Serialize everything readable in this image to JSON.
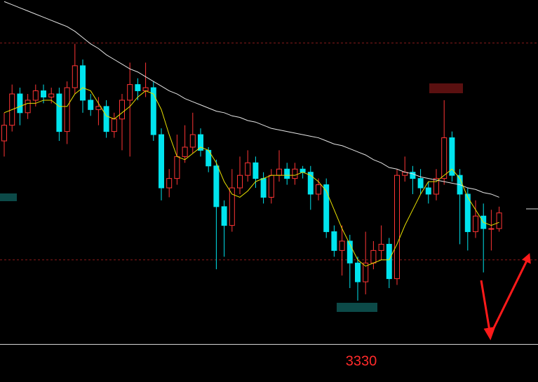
{
  "chart_data": {
    "type": "candlestick",
    "open": [
      3395,
      3400,
      3410,
      3404,
      3408,
      3411,
      3409,
      3410,
      3398,
      3412,
      3419,
      3408,
      3405,
      3406,
      3398,
      3402,
      3408,
      3413,
      3411,
      3412,
      3397,
      3380,
      3383,
      3390,
      3393,
      3397,
      3392,
      3387,
      3374,
      3368,
      3380,
      3384,
      3388,
      3383,
      3377,
      3384,
      3386,
      3383,
      3386,
      3385,
      3378,
      3381,
      3366,
      3360,
      3363,
      3356,
      3350,
      3356,
      3360,
      3362,
      3351,
      3384,
      3385,
      3383,
      3380,
      3378,
      3383,
      3396,
      3384,
      3378,
      3366,
      3371,
      3367,
      3367
    ],
    "high": [
      3404,
      3413,
      3412,
      3410,
      3413,
      3413,
      3412,
      3412,
      3414,
      3426,
      3421,
      3410,
      3409,
      3408,
      3404,
      3410,
      3420,
      3415,
      3420,
      3414,
      3399,
      3386,
      3397,
      3400,
      3404,
      3399,
      3393,
      3389,
      3376,
      3386,
      3390,
      3392,
      3390,
      3385,
      3386,
      3392,
      3388,
      3388,
      3387,
      3387,
      3383,
      3383,
      3368,
      3368,
      3365,
      3358,
      3366,
      3363,
      3368,
      3364,
      3386,
      3390,
      3387,
      3386,
      3382,
      3386,
      3408,
      3398,
      3386,
      3380,
      3376,
      3375,
      3373,
      3374
    ],
    "low": [
      3390,
      3398,
      3400,
      3402,
      3406,
      3407,
      3407,
      3395,
      3394,
      3410,
      3404,
      3403,
      3400,
      3396,
      3396,
      3392,
      3390,
      3408,
      3409,
      3395,
      3376,
      3377,
      3381,
      3388,
      3391,
      3390,
      3385,
      3354,
      3358,
      3366,
      3378,
      3382,
      3380,
      3375,
      3375,
      3382,
      3381,
      3381,
      3383,
      3373,
      3376,
      3364,
      3358,
      3352,
      3348,
      3344,
      3346,
      3354,
      3357,
      3348,
      3349,
      3382,
      3378,
      3378,
      3375,
      3376,
      3381,
      3382,
      3362,
      3360,
      3364,
      3353,
      3360,
      3366
    ],
    "close": [
      3400,
      3410,
      3404,
      3408,
      3411,
      3409,
      3410,
      3398,
      3412,
      3419,
      3408,
      3405,
      3406,
      3398,
      3402,
      3408,
      3413,
      3411,
      3412,
      3397,
      3380,
      3383,
      3390,
      3393,
      3397,
      3392,
      3387,
      3374,
      3368,
      3380,
      3384,
      3388,
      3383,
      3377,
      3384,
      3386,
      3383,
      3386,
      3385,
      3378,
      3381,
      3366,
      3360,
      3363,
      3356,
      3350,
      3356,
      3360,
      3362,
      3351,
      3384,
      3385,
      3383,
      3380,
      3378,
      3383,
      3396,
      3384,
      3378,
      3366,
      3371,
      3367,
      3367,
      3372
    ],
    "up_color": "#ff3535",
    "down_color": "#00e4ee",
    "ma_short": {
      "color": "#e8e000",
      "values": [
        3404,
        3405,
        3406,
        3407,
        3407,
        3408,
        3408,
        3406,
        3406,
        3410,
        3412,
        3411,
        3407,
        3403,
        3402,
        3404,
        3406,
        3409,
        3411,
        3410,
        3405,
        3397,
        3390,
        3389,
        3391,
        3393,
        3392,
        3388,
        3382,
        3378,
        3377,
        3379,
        3382,
        3383,
        3384,
        3384,
        3384,
        3384,
        3385,
        3384,
        3382,
        3379,
        3373,
        3367,
        3362,
        3357,
        3355,
        3356,
        3357,
        3357,
        3362,
        3368,
        3373,
        3378,
        3382,
        3382,
        3384,
        3386,
        3383,
        3377,
        3373,
        3369,
        3368,
        3369
      ]
    },
    "ma_long": {
      "color": "#e6e6e6",
      "values": [
        3439.5,
        3438.5,
        3437.5,
        3436.5,
        3435.5,
        3434.5,
        3433.5,
        3432.5,
        3431.5,
        3430,
        3428,
        3426,
        3424.5,
        3422.5,
        3421,
        3419.5,
        3418,
        3417,
        3415.5,
        3414,
        3412.5,
        3411,
        3410,
        3408.5,
        3407.5,
        3406.5,
        3405.5,
        3404.5,
        3404,
        3403,
        3402.5,
        3401.5,
        3401,
        3400,
        3399,
        3398.5,
        3398,
        3397.5,
        3397,
        3396.5,
        3396,
        3395,
        3394,
        3393.5,
        3392.5,
        3391.5,
        3390.5,
        3389,
        3388,
        3386.5,
        3386,
        3385,
        3384.5,
        3383.5,
        3383,
        3382.5,
        3382,
        3381.5,
        3381,
        3380,
        3379.5,
        3378.5,
        3378,
        3377
      ]
    },
    "reference_lines": [
      3426.3,
      3357
    ],
    "target_level": 3330,
    "last_price": 3373.3,
    "ylim": [
      3318,
      3440
    ]
  }
}
